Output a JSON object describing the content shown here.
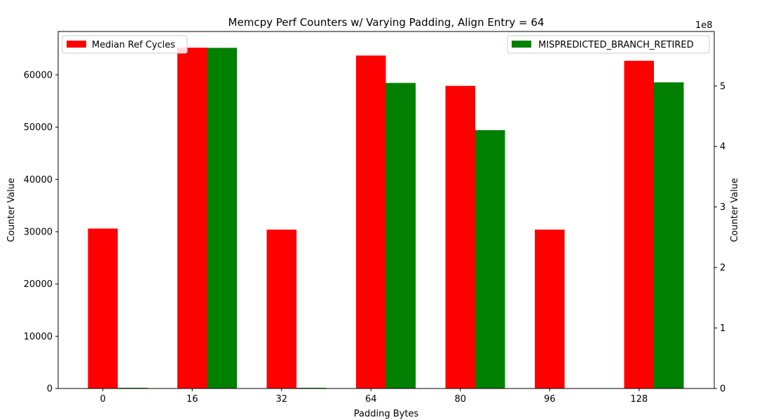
{
  "chart_data": {
    "type": "bar",
    "title": "Memcpy Perf Counters w/ Varying Padding, Align Entry = 64",
    "xlabel": "Padding Bytes",
    "ylabel_left": "Counter Value",
    "ylabel_right": "Counter Value",
    "right_axis_offset_text": "1e8",
    "categories": [
      "0",
      "16",
      "32",
      "64",
      "80",
      "96",
      "128"
    ],
    "ylim_left": [
      0,
      68300
    ],
    "yticks_left": [
      0,
      10000,
      20000,
      30000,
      40000,
      50000,
      60000
    ],
    "ylim_right": [
      0,
      5.9
    ],
    "yticks_right": [
      0,
      1,
      2,
      3,
      4,
      5
    ],
    "grid": false,
    "series": [
      {
        "name": "Median Ref Cycles",
        "axis": "left",
        "color": "#ff0000",
        "legend": "top-left",
        "values": [
          30600,
          65200,
          30400,
          63700,
          57900,
          30400,
          62700
        ]
      },
      {
        "name": "MISPREDICTED_BRANCH_RETIRED",
        "axis": "right",
        "color": "#008000",
        "legend": "top-right",
        "values": [
          0.012,
          5.63,
          0.012,
          5.05,
          4.27,
          0.0,
          5.06
        ]
      }
    ]
  }
}
